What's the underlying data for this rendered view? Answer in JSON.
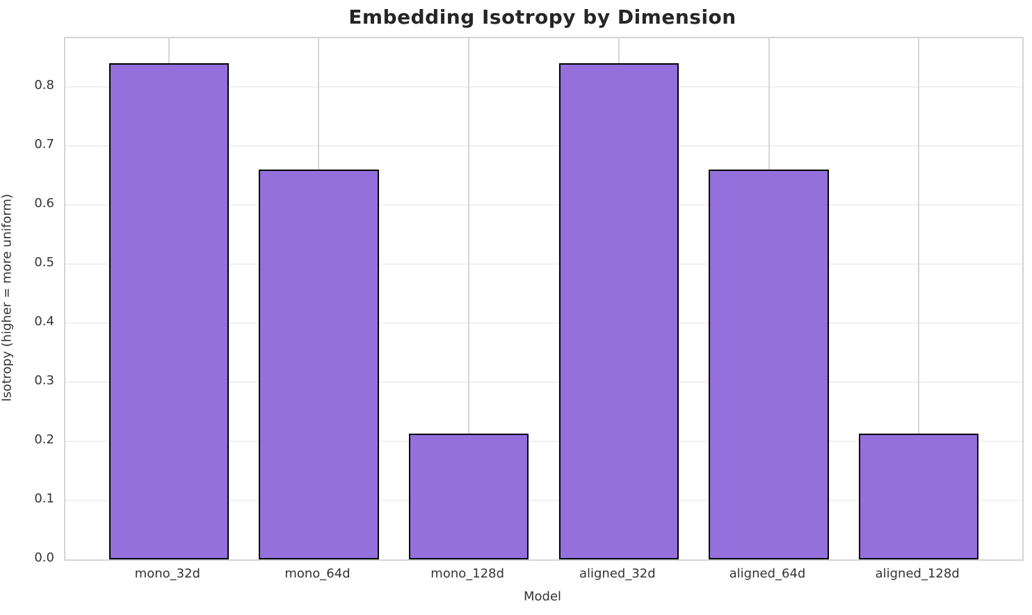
{
  "figure": {
    "background": "#ffffff"
  },
  "chart_data": {
    "type": "bar",
    "title": "Embedding Isotropy by Dimension",
    "xlabel": "Model",
    "ylabel": "Isotropy (higher = more uniform)",
    "categories": [
      "mono_32d",
      "mono_64d",
      "mono_128d",
      "aligned_32d",
      "aligned_64d",
      "aligned_128d"
    ],
    "values": [
      0.84,
      0.66,
      0.213,
      0.84,
      0.66,
      0.213
    ],
    "bar_width_fraction": 0.8,
    "ylim": [
      0,
      0.882
    ],
    "yticks": [
      0,
      0.1,
      0.2,
      0.3,
      0.4,
      0.5,
      0.6,
      0.7,
      0.8
    ],
    "ytick_labels": [
      "0.0",
      "0.1",
      "0.2",
      "0.3",
      "0.4",
      "0.5",
      "0.6",
      "0.7",
      "0.8"
    ],
    "grid": "both",
    "legend_position": "none",
    "bar_color": "#9370DB",
    "bar_edge_color": "#000000",
    "grid_color_horizontal": "#f0f0f0",
    "grid_color_vertical": "#d6d6d6",
    "spine_color": "#d4d4d4",
    "title_color": "#262626",
    "tick_color": "#333333"
  }
}
